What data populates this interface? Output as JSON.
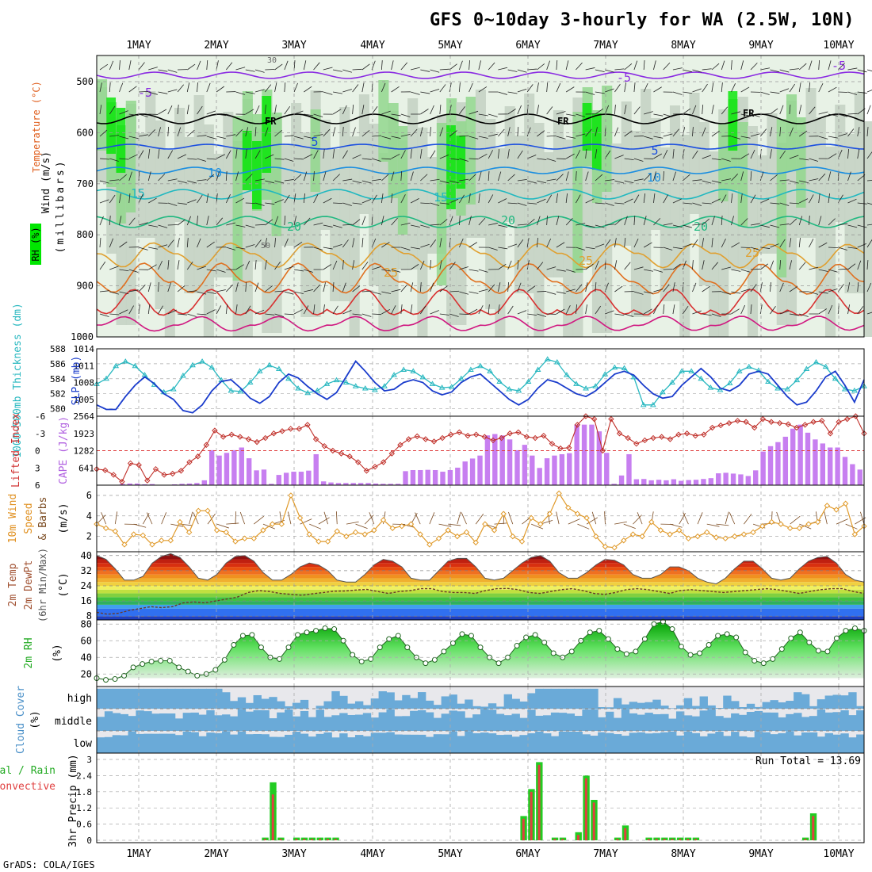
{
  "header": {
    "title": "GFS 0~10day 3-hourly for WA (2.5W, 10N)",
    "credit": "GrADS: COLA/IGES"
  },
  "date_labels": [
    "1MAY",
    "2MAY",
    "3MAY",
    "4MAY",
    "5MAY",
    "6MAY",
    "7MAY",
    "8MAY",
    "9MAY",
    "10MAY"
  ],
  "panels": {
    "upper_air": {
      "label_wind": "Wind (m/s)",
      "label_temp": "Temperature (°C)",
      "label_rh": "RH (%)",
      "label_mb": "(millibars)",
      "rh_bounds": [
        30,
        50
      ],
      "isotherm_labels": [
        "-5",
        "-5",
        "-5",
        "5",
        "5",
        "10",
        "10",
        "15",
        "15",
        "20",
        "20",
        "20",
        "25",
        "25",
        "25"
      ],
      "freezing_label": "FR"
    },
    "slp": {
      "label_left": "1000~500mb Thickness (dm)",
      "label_right": "SLP (mb)"
    },
    "cape": {
      "label_left": "Lifted Index",
      "label_right": "CAPE (J/kg)"
    },
    "wind10": {
      "label_a": "10m Wind",
      "label_b": "Speed",
      "label_c": "& Barbs",
      "unit": "(m/s)"
    },
    "temp2m": {
      "label_a": "2m Temp",
      "label_b": "2m DewPt",
      "label_c": "(6hr Min/Max)",
      "unit": "(°C)"
    },
    "rh2m": {
      "label": "2m RH",
      "unit": "(%)"
    },
    "cloud": {
      "label_a": "Cloud Cover",
      "unit": "(%)",
      "levels": [
        "high",
        "middle",
        "low"
      ]
    },
    "precip": {
      "label_a": "Total / Rain",
      "label_b": "Convective",
      "label_c": "3hr Precip (mm)",
      "run_total": "Run Total = 13.69"
    }
  },
  "colors": {
    "rh_light": "#e8f2e6",
    "rh_mid": "#c5d3c4",
    "rh_mid2": "#92d78d",
    "rh_bright": "#00e600",
    "cape_bar": "#c77ff0",
    "li_line": "#c0302a",
    "slp_line": "#1a3ccc",
    "thick_line": "#29b8c0",
    "wind_line": "#e09a2a",
    "rh2m_fill": "#3cd03c",
    "cloud": "#6aaad8",
    "precip_total": "#22cc22",
    "precip_conv": "#e04040"
  },
  "chart_data": [
    {
      "type": "line",
      "name": "1000~500mb Thickness",
      "y_axis": {
        "label": "1000~500mb Thickness (dm)",
        "ylim": [
          579,
          588
        ],
        "ticks": [
          580,
          582,
          584,
          586,
          588
        ]
      },
      "x": "3-hourly steps 0..80",
      "values": [
        583.3,
        584,
        585.7,
        586.3,
        585.7,
        584.5,
        583.2,
        582.2,
        582.6,
        584.4,
        585.8,
        586.3,
        585.5,
        583.8,
        582.4,
        582.3,
        583.5,
        585.0,
        585.8,
        585.3,
        584.0,
        582.7,
        582.1,
        582.4,
        583.3,
        583.8,
        583.5,
        583.0,
        582.7,
        582.5,
        583.0,
        584.5,
        585.2,
        585.0,
        584.2,
        583.3,
        582.8,
        582.9,
        584.0,
        585.2,
        585.7,
        585.0,
        583.6,
        582.6,
        582.4,
        583.6,
        585.2,
        586.6,
        586.2,
        584.5,
        583.3,
        582.7,
        583.0,
        584.6,
        585.5,
        585.4,
        584.2,
        580.5,
        580.5,
        582.2,
        583.5,
        585.0,
        585.0,
        584.0,
        582.8,
        582.5,
        583.4,
        585.0,
        585.6,
        585.1,
        583.6,
        582.7,
        582.6,
        583.8,
        585.3,
        586.2,
        585.6,
        584.0,
        582.6,
        582.4,
        583.0
      ]
    },
    {
      "type": "line",
      "name": "SLP",
      "y_axis": {
        "label": "SLP (mb)",
        "ylim": [
          1002,
          1014
        ],
        "ticks": [
          1005,
          1008,
          1011,
          1014
        ]
      },
      "values": [
        1004.0,
        1003.2,
        1003.2,
        1005.5,
        1007.5,
        1009.0,
        1007.8,
        1006.0,
        1005.0,
        1003.0,
        1002.6,
        1004.0,
        1006.5,
        1008.2,
        1008.5,
        1007.0,
        1005.2,
        1004.3,
        1005.5,
        1008.0,
        1009.5,
        1008.8,
        1007.3,
        1006.0,
        1005.0,
        1006.2,
        1009.0,
        1011.8,
        1010.0,
        1008.0,
        1006.5,
        1006.8,
        1008.0,
        1008.5,
        1008.0,
        1006.5,
        1005.8,
        1006.3,
        1008.0,
        1009.0,
        1009.5,
        1008.0,
        1006.5,
        1005.0,
        1004.0,
        1005.0,
        1007.0,
        1008.5,
        1008.0,
        1007.0,
        1006.0,
        1005.5,
        1006.5,
        1008.0,
        1009.5,
        1010.0,
        1009.3,
        1007.5,
        1006.0,
        1005.2,
        1005.5,
        1007.5,
        1009.0,
        1010.5,
        1009.0,
        1007.0,
        1006.5,
        1007.5,
        1009.5,
        1010.0,
        1009.5,
        1007.5,
        1005.5,
        1004.0,
        1004.5,
        1006.5,
        1009.0,
        1010.0,
        1007.5,
        1004.5,
        1008.5
      ]
    },
    {
      "type": "bar",
      "name": "CAPE",
      "y_axis": {
        "label": "CAPE (J/kg)",
        "ylim": [
          0,
          2564
        ],
        "ticks": [
          641,
          1282,
          1923,
          2564
        ]
      },
      "values": [
        0,
        0,
        0,
        50,
        60,
        60,
        30,
        40,
        0,
        0,
        30,
        50,
        60,
        80,
        180,
        1300,
        1100,
        1200,
        1300,
        1400,
        1000,
        550,
        580,
        50,
        380,
        460,
        500,
        500,
        540,
        1150,
        140,
        100,
        80,
        80,
        80,
        80,
        80,
        60,
        50,
        50,
        50,
        520,
        560,
        560,
        570,
        560,
        500,
        560,
        650,
        880,
        990,
        1100,
        1850,
        1900,
        1850,
        1700,
        1300,
        1500,
        1100,
        640,
        1000,
        1100,
        1150,
        1190,
        2250,
        2250,
        2250,
        2000,
        1200,
        50,
        360,
        1150,
        220,
        230,
        180,
        200,
        180,
        220,
        160,
        190,
        200,
        230,
        260,
        440,
        460,
        430,
        400,
        340,
        550,
        1250,
        1450,
        1600,
        1800,
        2100,
        2250,
        1950,
        1700,
        1550,
        1400,
        1400,
        1050,
        780,
        580
      ],
      "note": "3-hourly bars"
    },
    {
      "type": "line",
      "name": "Lifted Index",
      "y_axis": {
        "label": "Lifted Index",
        "ylim": [
          6,
          -6
        ],
        "ticks": [
          6,
          3,
          0,
          -3,
          -6
        ]
      },
      "values": [
        3.2,
        3.4,
        4.2,
        5.4,
        2.2,
        2.5,
        5.2,
        3.2,
        4.2,
        4.0,
        3.5,
        2.0,
        1.0,
        -1.0,
        -3.5,
        -2.4,
        -2.8,
        -2.4,
        -2.0,
        -1.5,
        -2.2,
        -3.0,
        -3.4,
        -3.8,
        -3.8,
        -4.5,
        -2.0,
        -0.8,
        0.0,
        0.5,
        1.0,
        2.0,
        3.5,
        2.8,
        2.0,
        0.5,
        -1.0,
        -2.0,
        -2.5,
        -2.0,
        -1.6,
        -2.2,
        -2.8,
        -3.2,
        -2.6,
        -2.8,
        -2.4,
        -1.8,
        -2.2,
        -3.0,
        -3.2,
        -2.4,
        -2.2,
        -2.6,
        -1.2,
        -0.4,
        -0.5,
        -4.5,
        -6.0,
        -5.5,
        0.0,
        -5.5,
        -3.0,
        -2.2,
        -1.2,
        -1.8,
        -2.2,
        -2.4,
        -2.0,
        -2.8,
        -3.0,
        -2.6,
        -2.8,
        -4.0,
        -4.4,
        -4.8,
        -5.2,
        -5.0,
        -4.0,
        -5.5,
        -5.0,
        -4.8,
        -4.6,
        -4.0,
        -4.5,
        -5.0,
        -5.2,
        -3.0,
        -5.0,
        -5.5,
        -6.0,
        -3.0
      ],
      "reference_line": 0
    },
    {
      "type": "line",
      "name": "10m Wind Speed",
      "y_axis": {
        "label": "10m Wind Speed & Barbs (m/s)",
        "ylim": [
          0.5,
          7
        ],
        "ticks": [
          2,
          4,
          6
        ]
      },
      "values": [
        3.2,
        2.8,
        2.5,
        1.2,
        2.2,
        2.1,
        1.2,
        1.6,
        1.6,
        3.4,
        2.4,
        4.5,
        4.5,
        2.6,
        2.4,
        1.5,
        1.8,
        1.8,
        2.6,
        3.2,
        3.2,
        6.0,
        3.8,
        2.2,
        1.5,
        1.5,
        2.5,
        2.0,
        2.4,
        2.2,
        2.6,
        3.6,
        2.8,
        3.0,
        3.2,
        2.2,
        1.2,
        1.8,
        2.6,
        2.0,
        2.4,
        1.4,
        3.2,
        2.6,
        4.2,
        2.0,
        1.5,
        3.8,
        3.2,
        4.2,
        6.2,
        4.8,
        4.2,
        3.8,
        2.0,
        1.0,
        0.9,
        1.6,
        2.2,
        2.0,
        3.4,
        2.6,
        2.2,
        2.6,
        1.8,
        2.0,
        2.4,
        1.9,
        1.8,
        2.0,
        2.2,
        2.4,
        3.0,
        3.4,
        3.2,
        2.8,
        2.8,
        3.2,
        3.4,
        5.0,
        4.6,
        5.2,
        2.2,
        3.0
      ]
    },
    {
      "type": "area",
      "name": "2m Temperature",
      "y_axis": {
        "label": "2m Temp (°C)",
        "ylim": [
          6,
          42
        ],
        "ticks": [
          8,
          16,
          24,
          32,
          40
        ]
      },
      "values": [
        40,
        38,
        33,
        27,
        27,
        29,
        36,
        39.5,
        41,
        39,
        34,
        28,
        27,
        30,
        36,
        39.5,
        40,
        37,
        31,
        27,
        27,
        30,
        34,
        36,
        35,
        32,
        27,
        26,
        26,
        30,
        35,
        38,
        37,
        34,
        28,
        27,
        27,
        32,
        37,
        38.5,
        38.5,
        34,
        28,
        27,
        28,
        32,
        36,
        39,
        40,
        37,
        31,
        28,
        28,
        31,
        35,
        38,
        37.5,
        35,
        30,
        28,
        28,
        30,
        34,
        34,
        32,
        28,
        26,
        25,
        28,
        33,
        37,
        37,
        33,
        28,
        27,
        28,
        33,
        37,
        39,
        39.5,
        36,
        30,
        27,
        26
      ]
    },
    {
      "type": "line",
      "name": "2m Dew Point",
      "values": [
        10,
        9,
        9.5,
        11,
        12,
        13,
        12.5,
        13,
        15,
        15.5,
        15,
        16,
        17,
        18,
        20.5,
        21.5,
        21,
        20,
        19.5,
        19,
        19.8,
        20.5,
        21.2,
        21.3,
        21.8,
        22.1,
        21,
        20,
        21,
        21.5,
        22.5,
        22.5,
        21,
        20.5,
        20.5,
        20,
        21.5,
        22.5,
        22.6,
        22,
        20.5,
        20,
        21,
        22,
        22.5,
        21.5,
        20,
        19.5,
        20.5,
        22,
        22.5,
        22,
        21,
        20,
        21.5,
        22,
        21.5,
        21,
        20.5,
        21,
        21.5,
        22,
        22.5,
        22,
        21,
        20,
        21,
        22,
        22.5,
        22.5,
        21,
        20
      ]
    },
    {
      "type": "area",
      "name": "2m RH",
      "y_axis": {
        "label": "2m RH (%)",
        "ylim": [
          5,
          85
        ],
        "ticks": [
          20,
          40,
          60,
          80
        ]
      },
      "values": [
        15,
        13,
        14,
        18,
        28,
        32,
        35,
        36,
        36,
        28,
        23,
        18,
        20,
        25,
        37,
        55,
        66,
        67,
        52,
        40,
        38,
        52,
        67,
        70,
        72,
        75,
        74,
        60,
        43,
        35,
        38,
        52,
        62,
        66,
        52,
        40,
        33,
        37,
        47,
        57,
        68,
        66,
        52,
        40,
        33,
        40,
        54,
        64,
        67,
        58,
        45,
        40,
        47,
        60,
        70,
        72,
        62,
        50,
        44,
        47,
        62,
        80,
        83,
        74,
        53,
        43,
        45,
        55,
        66,
        68,
        64,
        46,
        36,
        33,
        38,
        50,
        63,
        70,
        58,
        48,
        47,
        63,
        72,
        75,
        72
      ]
    },
    {
      "type": "heatmap",
      "name": "Cloud Cover",
      "levels": [
        "high",
        "middle",
        "low"
      ],
      "note": "blue = cloud, gray = clear, 3-hourly columns"
    },
    {
      "type": "bar",
      "name": "3hr Precip",
      "y_axis": {
        "label": "3hr Precip (mm)",
        "ylim": [
          0,
          3
        ],
        "ticks": [
          0,
          0.6,
          1.2,
          1.8,
          2.4,
          3
        ]
      },
      "series": [
        {
          "name": "Total / Rain",
          "x_index": [
            21,
            22,
            23,
            25,
            26,
            27,
            28,
            29,
            30,
            54,
            55,
            56,
            58,
            59,
            61,
            62,
            63,
            66,
            67,
            70,
            71,
            72,
            73,
            74,
            75,
            76,
            90,
            91
          ],
          "values": [
            0.1,
            2.15,
            0.1,
            0.1,
            0.1,
            0.1,
            0.1,
            0.1,
            0.1,
            0.9,
            1.9,
            2.9,
            0.1,
            0.1,
            0.3,
            2.4,
            1.5,
            0.1,
            0.55,
            0.1,
            0.1,
            0.1,
            0.1,
            0.1,
            0.1,
            0.1,
            0.1,
            1.0
          ]
        },
        {
          "name": "Convective",
          "x_index": [
            21,
            22,
            23,
            25,
            26,
            27,
            28,
            29,
            30,
            54,
            55,
            56,
            58,
            59,
            61,
            62,
            63,
            66,
            67,
            70,
            71,
            72,
            73,
            74,
            75,
            76,
            90,
            91
          ],
          "values": [
            0.05,
            1.7,
            0.05,
            0.05,
            0.05,
            0.05,
            0.05,
            0.05,
            0.05,
            0.8,
            1.8,
            2.8,
            0.05,
            0.05,
            0.2,
            2.3,
            1.4,
            0.05,
            0.45,
            0.05,
            0.05,
            0.05,
            0.05,
            0.05,
            0.05,
            0.05,
            0.05,
            0.9
          ]
        }
      ],
      "run_total": 13.69
    }
  ]
}
